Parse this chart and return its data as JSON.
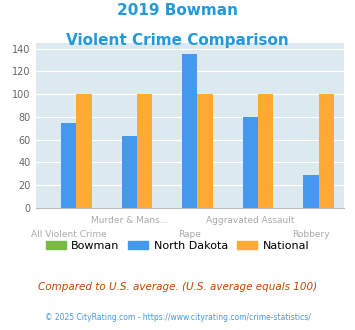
{
  "title_line1": "2019 Bowman",
  "title_line2": "Violent Crime Comparison",
  "top_labels": [
    "",
    "Murder & Mans...",
    "",
    "Aggravated Assault",
    ""
  ],
  "bottom_labels": [
    "All Violent Crime",
    "",
    "Rape",
    "",
    "Robbery"
  ],
  "bowman": [
    0,
    0,
    0,
    0,
    0
  ],
  "north_dakota": [
    75,
    63,
    135,
    80,
    29
  ],
  "national": [
    100,
    100,
    100,
    100,
    100
  ],
  "color_bowman": "#77bb44",
  "color_nd": "#4499ee",
  "color_national": "#ffaa33",
  "ylim": [
    0,
    145
  ],
  "yticks": [
    0,
    20,
    40,
    60,
    80,
    100,
    120,
    140
  ],
  "bg_color": "#dce9f0",
  "title_color": "#2299dd",
  "label_color": "#aaaaaa",
  "footer_text": "Compared to U.S. average. (U.S. average equals 100)",
  "copyright_text": "© 2025 CityRating.com - https://www.cityrating.com/crime-statistics/",
  "legend_labels": [
    "Bowman",
    "North Dakota",
    "National"
  ],
  "footer_color": "#cc4400",
  "copyright_color": "#4499dd"
}
